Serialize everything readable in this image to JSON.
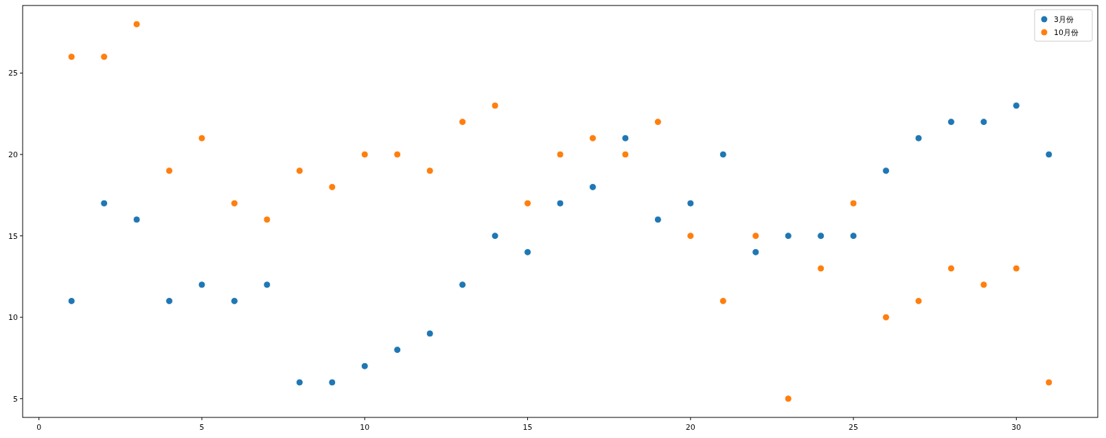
{
  "chart_data": {
    "type": "scatter",
    "x": [
      1,
      2,
      3,
      4,
      5,
      6,
      7,
      8,
      9,
      10,
      11,
      12,
      13,
      14,
      15,
      16,
      17,
      18,
      19,
      20,
      21,
      22,
      23,
      24,
      25,
      26,
      27,
      28,
      29,
      30,
      31
    ],
    "series": [
      {
        "name": "3月份",
        "color": "#1f77b4",
        "values": [
          11,
          17,
          16,
          11,
          12,
          11,
          12,
          6,
          6,
          7,
          8,
          9,
          12,
          15,
          14,
          17,
          18,
          21,
          16,
          17,
          20,
          14,
          15,
          15,
          15,
          19,
          21,
          22,
          22,
          23,
          20
        ]
      },
      {
        "name": "10月份",
        "color": "#ff7f0e",
        "values": [
          26,
          26,
          28,
          19,
          21,
          17,
          16,
          19,
          18,
          20,
          20,
          19,
          22,
          23,
          17,
          20,
          21,
          20,
          22,
          15,
          11,
          15,
          5,
          13,
          17,
          10,
          11,
          13,
          12,
          13,
          6
        ]
      }
    ],
    "xlim": [
      -0.5,
      32.5
    ],
    "ylim": [
      3.85,
      29.15
    ],
    "xticks": [
      0,
      5,
      10,
      15,
      20,
      25,
      30
    ],
    "yticks": [
      5,
      10,
      15,
      20,
      25
    ],
    "marker": "circle",
    "legend": "top right",
    "grid": false
  }
}
